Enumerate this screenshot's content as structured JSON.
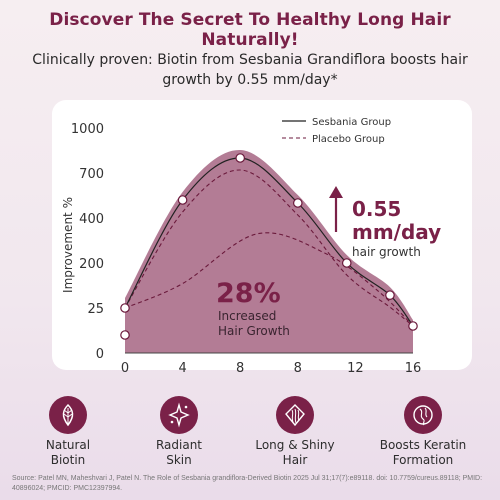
{
  "header": {
    "title": "Discover The Secret To Healthy Long Hair Naturally!",
    "subtitle": "Clinically proven: Biotin from Sesbania Grandiflora boosts hair growth by 0.55 mm/day*"
  },
  "chart_data": {
    "type": "line",
    "ylabel": "Improvement %",
    "xlabel": "",
    "x_ticks": [
      "0",
      "4",
      "8",
      "8",
      "12",
      "16"
    ],
    "y_ticks": [
      "0",
      "25",
      "200",
      "400",
      "700",
      "1000"
    ],
    "series": [
      {
        "name": "Sesbania Group",
        "style": "solid",
        "points": [
          {
            "x": "0",
            "y": 25
          },
          {
            "x": "4",
            "y": 520
          },
          {
            "x": "8",
            "y": 800
          },
          {
            "x": "8",
            "y": 500
          },
          {
            "x": "12",
            "y": 200
          },
          {
            "x": "12",
            "y": 75
          },
          {
            "x": "16",
            "y": 15
          }
        ]
      },
      {
        "name": "Placebo Group",
        "style": "dashed",
        "points": [
          {
            "x": "0",
            "y": 25
          },
          {
            "x": "8",
            "y": 720
          },
          {
            "x": "16",
            "y": 15
          }
        ]
      }
    ],
    "annotations": {
      "growth_value": "0.55",
      "growth_unit": "mm/day",
      "growth_caption": "hair growth",
      "percent": "28%",
      "percent_caption_1": "Increased",
      "percent_caption_2": "Hair Growth"
    },
    "colors": {
      "accent": "#7a2148",
      "area": "#b37c95",
      "placebo": "#6b1a3c"
    }
  },
  "features": [
    {
      "label": "Natural\nBiotin",
      "icon": "leaf-icon"
    },
    {
      "label": "Radiant\nSkin",
      "icon": "sparkle-icon"
    },
    {
      "label": "Long & Shiny\nHair",
      "icon": "hair-icon"
    },
    {
      "label": "Boosts Keratin\nFormation",
      "icon": "keratin-icon"
    }
  ],
  "footnote": "Source: Patel MN, Maheshvari J, Patel N. The Role of Sesbania grandiflora-Derived Biotin 2025 Jul 31;17(7):e89118. doi: 10.7759/cureus.89118; PMID: 40896024; PMCID: PMC12397994."
}
